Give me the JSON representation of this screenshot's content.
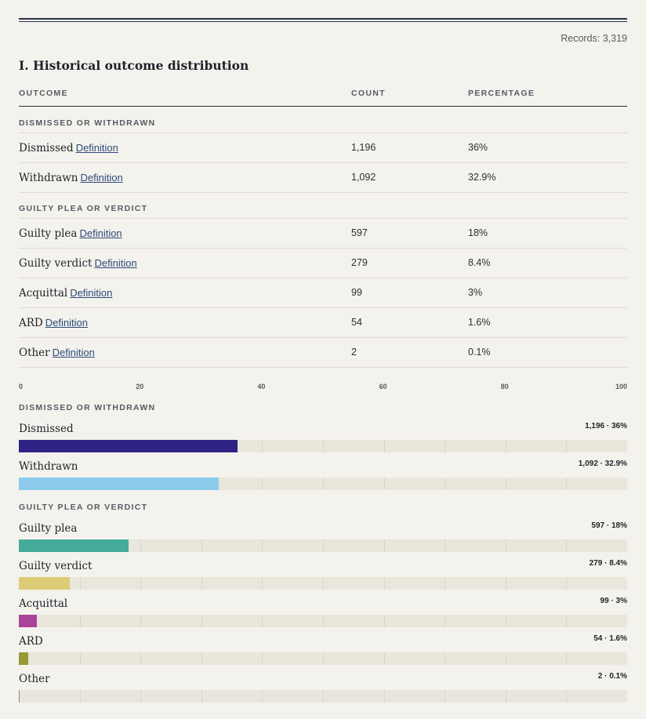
{
  "records_label": "Records: 3,319",
  "section_title": "I. Historical outcome distribution",
  "table": {
    "headers": [
      "OUTCOME",
      "COUNT",
      "PERCENTAGE"
    ],
    "definition_label": "Definition",
    "groups": [
      {
        "label": "DISMISSED OR WITHDRAWN",
        "rows": [
          {
            "name": "Dismissed",
            "count": "1,196",
            "pct": "36%"
          },
          {
            "name": "Withdrawn",
            "count": "1,092",
            "pct": "32.9%"
          }
        ]
      },
      {
        "label": "GUILTY PLEA OR VERDICT",
        "rows": [
          {
            "name": "Guilty plea",
            "count": "597",
            "pct": "18%"
          },
          {
            "name": "Guilty verdict",
            "count": "279",
            "pct": "8.4%"
          },
          {
            "name": "Acquittal",
            "count": "99",
            "pct": "3%"
          },
          {
            "name": "ARD",
            "count": "54",
            "pct": "1.6%"
          },
          {
            "name": "Other",
            "count": "2",
            "pct": "0.1%"
          }
        ]
      }
    ]
  },
  "chart_data": {
    "type": "bar",
    "orientation": "horizontal",
    "xlim": [
      0,
      100
    ],
    "x_ticks": [
      "0",
      "20",
      "40",
      "60",
      "80",
      "100"
    ],
    "groups": [
      {
        "label": "DISMISSED OR WITHDRAWN",
        "bars": [
          {
            "label": "Dismissed",
            "value": 36,
            "value_label": "1,196 · 36%",
            "color": "#2e2383"
          },
          {
            "label": "Withdrawn",
            "value": 32.9,
            "value_label": "1,092 · 32.9%",
            "color": "#8ccbec"
          }
        ]
      },
      {
        "label": "GUILTY PLEA OR VERDICT",
        "bars": [
          {
            "label": "Guilty plea",
            "value": 18,
            "value_label": "597 · 18%",
            "color": "#44aa99"
          },
          {
            "label": "Guilty verdict",
            "value": 8.4,
            "value_label": "279 · 8.4%",
            "color": "#ddcc77"
          },
          {
            "label": "Acquittal",
            "value": 3,
            "value_label": "99 · 3%",
            "color": "#aa4499"
          },
          {
            "label": "ARD",
            "value": 1.6,
            "value_label": "54 · 1.6%",
            "color": "#999933"
          },
          {
            "label": "Other",
            "value": 0.1,
            "value_label": "2 · 0.1%",
            "color": "#888888"
          }
        ]
      }
    ]
  }
}
